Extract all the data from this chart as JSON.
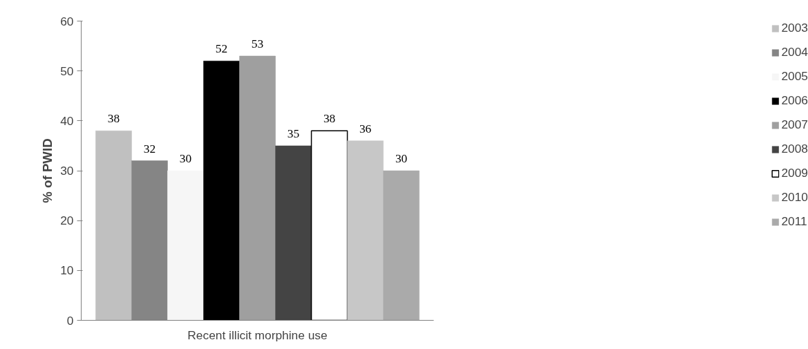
{
  "chart_data": {
    "type": "bar",
    "ylabel": "% of PWID",
    "categories": [
      "Recent illicit morphine use"
    ],
    "series": [
      {
        "name": "2003",
        "color": "#c0c0c0",
        "values": [
          38
        ]
      },
      {
        "name": "2004",
        "color": "#858585",
        "values": [
          32
        ]
      },
      {
        "name": "2005",
        "color": "#f6f6f6",
        "values": [
          30
        ]
      },
      {
        "name": "2006",
        "color": "#000000",
        "values": [
          52
        ]
      },
      {
        "name": "2007",
        "color": "#9f9f9f",
        "values": [
          53
        ]
      },
      {
        "name": "2008",
        "color": "#444444",
        "values": [
          35
        ]
      },
      {
        "name": "2009",
        "color": "#ffffff",
        "values": [
          38
        ]
      },
      {
        "name": "2010",
        "color": "#c7c7c7",
        "values": [
          36
        ]
      },
      {
        "name": "2011",
        "color": "#aaaaaa",
        "values": [
          30
        ]
      }
    ],
    "ylim": [
      0,
      60
    ],
    "yticks": [
      0,
      10,
      20,
      30,
      40,
      50,
      60
    ],
    "data_labels": true,
    "grid": false,
    "legend": "right"
  }
}
